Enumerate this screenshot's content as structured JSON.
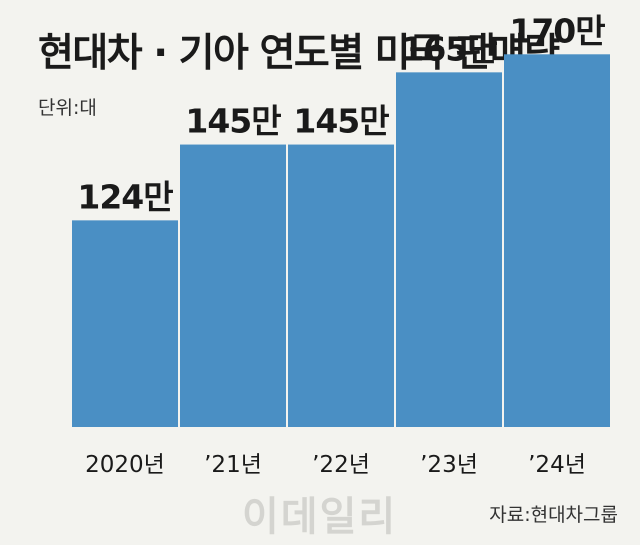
{
  "chart_data": {
    "type": "bar",
    "title": "현대차 · 기아 연도별 미국 판매량",
    "unit_label": "단위:대",
    "source": "자료:현대차그룹",
    "watermark": "이데일리",
    "categories": [
      "2020년",
      "’21년",
      "’22년",
      "’23년",
      "’24년"
    ],
    "values": [
      124,
      145,
      145,
      165,
      170
    ],
    "value_labels": [
      "124만",
      "145만",
      "145만",
      "165만",
      "170만"
    ],
    "value_unit": "만 대",
    "bar_color": "#4a8fc4",
    "grid": false,
    "legend": "none"
  }
}
